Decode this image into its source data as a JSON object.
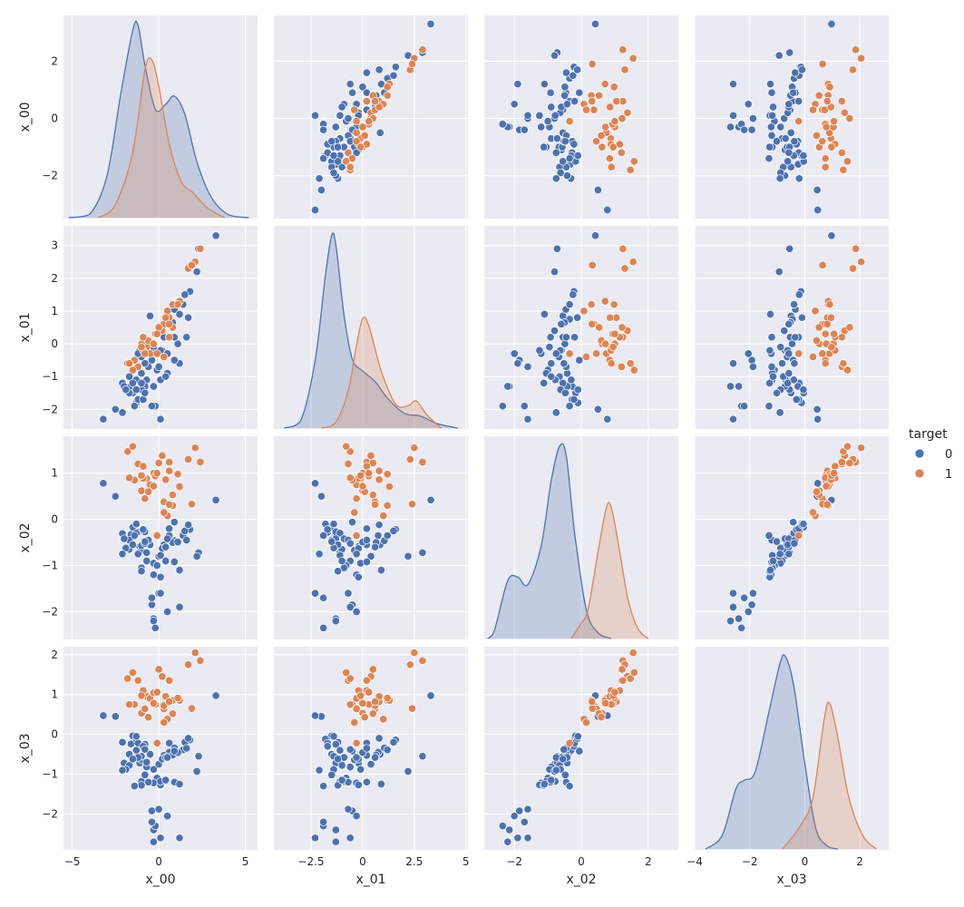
{
  "chart_data": {
    "type": "pairplot",
    "variables": [
      "x_00",
      "x_01",
      "x_02",
      "x_03"
    ],
    "hue": {
      "title": "target",
      "levels": [
        "0",
        "1"
      ],
      "colors": {
        "0": "#4c72b0",
        "1": "#dd8452"
      }
    },
    "axes": {
      "x_00": {
        "xlim": [
          -5.5,
          5.7
        ],
        "ylim": [
          -3.5,
          3.6
        ],
        "xticks": [
          -5,
          0,
          5
        ],
        "yticks": [
          -2,
          0,
          2
        ]
      },
      "x_01": {
        "xlim": [
          -4.3,
          5.1
        ],
        "ylim": [
          -2.6,
          3.6
        ],
        "xticks": [
          -2.5,
          0.0,
          2.5,
          5.0
        ],
        "yticks": [
          -2,
          -1,
          0,
          1,
          2,
          3
        ]
      },
      "x_02": {
        "xlim": [
          -2.9,
          2.9
        ],
        "ylim": [
          -2.6,
          1.8
        ],
        "xticks": [
          -2,
          0,
          2
        ],
        "yticks": [
          -2,
          -1,
          0,
          1
        ]
      },
      "x_03": {
        "xlim": [
          -4.0,
          3.05
        ],
        "ylim": [
          -2.9,
          2.2
        ],
        "xticks": [
          -4,
          -2,
          0,
          2
        ],
        "yticks": [
          -2,
          -1,
          0,
          1,
          2
        ]
      }
    },
    "points": {
      "0": [
        [
          -1.1,
          -0.2,
          -0.59,
          -0.72
        ],
        [
          -0.5,
          0.85,
          -0.55,
          -0.5
        ],
        [
          0.6,
          0.75,
          -0.35,
          -0.45
        ],
        [
          2.3,
          2.9,
          -0.72,
          -0.55
        ],
        [
          1.8,
          1.6,
          -0.22,
          -0.14
        ],
        [
          -1.6,
          -1.3,
          -0.33,
          -0.24
        ],
        [
          -2.1,
          -1.2,
          -0.31,
          -0.2
        ],
        [
          0.9,
          1.05,
          -0.46,
          -0.34
        ],
        [
          0.3,
          0.2,
          -0.55,
          -0.53
        ],
        [
          -1.0,
          -0.4,
          -0.67,
          -0.64
        ],
        [
          1.4,
          1.2,
          -0.35,
          -0.39
        ],
        [
          0.0,
          0.4,
          -0.8,
          -0.75
        ],
        [
          -1.5,
          -1.5,
          -0.17,
          -0.04
        ],
        [
          -1.3,
          -1.8,
          -0.1,
          -0.12
        ],
        [
          0.2,
          -0.2,
          -0.63,
          -0.62
        ],
        [
          3.3,
          3.3,
          0.42,
          0.97
        ],
        [
          -2.5,
          -2.0,
          0.5,
          0.45
        ],
        [
          -1.2,
          -1.7,
          -0.28,
          -0.22
        ],
        [
          -0.7,
          -0.6,
          -0.9,
          -0.82
        ],
        [
          0.8,
          0.65,
          -0.5,
          -0.52
        ],
        [
          -0.3,
          -0.1,
          -0.95,
          -0.88
        ],
        [
          1.1,
          0.0,
          -0.49,
          -0.46
        ],
        [
          -0.7,
          -1.1,
          -0.72,
          -0.7
        ],
        [
          -0.8,
          -1.3,
          -0.27,
          -0.25
        ],
        [
          -1.3,
          -1.1,
          -0.3,
          -0.4
        ],
        [
          -1.7,
          -1.5,
          -0.45,
          -0.5
        ],
        [
          -1.0,
          -1.4,
          -0.57,
          -0.55
        ],
        [
          -0.1,
          -0.8,
          -1.0,
          -1.1
        ],
        [
          0.4,
          0.6,
          -0.6,
          -0.58
        ],
        [
          1.5,
          1.5,
          -0.25,
          -0.2
        ],
        [
          2.2,
          2.2,
          -0.8,
          -0.93
        ],
        [
          -3.2,
          -2.3,
          0.78,
          0.47
        ],
        [
          -1.0,
          -0.9,
          -1.05,
          -1.18
        ],
        [
          -0.3,
          -0.3,
          -1.2,
          -1.22
        ],
        [
          0.1,
          -0.2,
          -1.25,
          -1.27
        ],
        [
          -0.9,
          -1.7,
          -0.22,
          -0.3
        ],
        [
          -2.0,
          -1.3,
          -0.42,
          -0.72
        ],
        [
          -0.4,
          -0.5,
          -1.85,
          -1.92
        ],
        [
          0.0,
          -0.7,
          -1.6,
          -1.88
        ],
        [
          0.5,
          -0.3,
          -2.0,
          -2.05
        ],
        [
          -0.3,
          -1.3,
          -2.15,
          -2.4
        ],
        [
          1.2,
          -0.6,
          -1.9,
          -2.6
        ],
        [
          -1.7,
          -1.0,
          -0.65,
          -0.78
        ],
        [
          -1.2,
          -0.3,
          -0.75,
          -0.58
        ],
        [
          0.5,
          -0.9,
          -0.42,
          -0.58
        ],
        [
          0.9,
          -0.5,
          -0.06,
          -0.42
        ],
        [
          -1.5,
          -1.2,
          -0.55,
          -0.62
        ],
        [
          -1.9,
          -1.4,
          -0.62,
          -0.88
        ],
        [
          0.6,
          0.2,
          -0.2,
          -0.22
        ],
        [
          1.6,
          0.2,
          -0.45,
          -0.35
        ],
        [
          0.1,
          -1.1,
          -0.78,
          -1.18
        ],
        [
          -0.6,
          -0.7,
          -0.45,
          -1.2
        ],
        [
          -1.0,
          -1.2,
          -1.12,
          -1.28
        ],
        [
          0.9,
          0.2,
          -0.92,
          -1.2
        ],
        [
          -0.8,
          -0.6,
          -0.52,
          -0.38
        ],
        [
          0.4,
          -1.0,
          -0.9,
          -1.15
        ],
        [
          -0.3,
          -1.3,
          -2.2,
          -2.7
        ],
        [
          -1.4,
          -1.9,
          -0.35,
          -1.3
        ],
        [
          -0.2,
          -1.9,
          -2.35,
          -2.3
        ],
        [
          -0.8,
          -1.5,
          -0.48,
          -1.02
        ],
        [
          1.2,
          0.9,
          -1.1,
          -1.25
        ],
        [
          1.7,
          0.8,
          -0.12,
          -0.1
        ],
        [
          0.1,
          -2.3,
          -1.6,
          -2.6
        ],
        [
          -2.1,
          -2.1,
          -0.75,
          -0.9
        ],
        [
          -1.3,
          -1.4,
          -0.1,
          -0.05
        ],
        [
          -0.4,
          -1.9,
          -1.7,
          -2.2
        ]
      ],
      "1": [
        [
          2.4,
          2.9,
          1.24,
          1.85
        ],
        [
          2.1,
          2.5,
          1.55,
          2.05
        ],
        [
          1.7,
          2.3,
          1.3,
          1.75
        ],
        [
          0.3,
          0.6,
          0.4,
          0.64
        ],
        [
          -0.7,
          -0.1,
          0.88,
          0.95
        ],
        [
          -0.5,
          -0.3,
          0.75,
          0.9
        ],
        [
          0.8,
          1.2,
          0.3,
          0.85
        ],
        [
          -1.2,
          -0.7,
          1.2,
          1.35
        ],
        [
          1.2,
          1.3,
          0.71,
          0.85
        ],
        [
          -0.3,
          0.0,
          1.0,
          1.04
        ],
        [
          -0.9,
          -0.2,
          0.89,
          1.1
        ],
        [
          0.2,
          0.4,
          1.38,
          1.45
        ],
        [
          -1.8,
          -0.6,
          1.47,
          1.4
        ],
        [
          -0.1,
          -0.3,
          -0.35,
          -0.22
        ],
        [
          0.6,
          0.2,
          1.24,
          1.35
        ],
        [
          -1.4,
          -0.5,
          0.85,
          0.75
        ],
        [
          -1.0,
          0.0,
          0.62,
          0.53
        ],
        [
          0.3,
          0.6,
          0.38,
          0.72
        ],
        [
          -0.8,
          -0.3,
          0.45,
          0.64
        ],
        [
          0.6,
          0.8,
          1.05,
          0.82
        ],
        [
          -0.2,
          0.3,
          0.94,
          0.75
        ],
        [
          0.5,
          1.0,
          0.08,
          0.38
        ],
        [
          1.1,
          1.2,
          0.98,
          0.91
        ],
        [
          -1.5,
          -0.8,
          1.58,
          1.55
        ],
        [
          0.8,
          0.5,
          0.53,
          0.52
        ],
        [
          -0.6,
          0.1,
          0.6,
          0.43
        ],
        [
          0.0,
          0.5,
          1.22,
          1.63
        ],
        [
          0.3,
          -0.4,
          0.15,
          0.3
        ],
        [
          -1.7,
          -0.6,
          0.9,
          0.75
        ],
        [
          -0.9,
          0.2,
          1.15,
          1.1
        ],
        [
          1.9,
          2.4,
          0.33,
          0.65
        ],
        [
          0.4,
          0.8,
          0.86,
          0.95
        ],
        [
          -0.3,
          0.0,
          0.72,
          0.78
        ],
        [
          0.6,
          0.6,
          0.32,
          0.82
        ],
        [
          -1.0,
          -0.1,
          0.95,
          0.97
        ],
        [
          -0.1,
          0.3,
          1.0,
          1.06
        ]
      ]
    },
    "kde": {
      "x_00": {
        "0": [
          [
            -5.2,
            0.0
          ],
          [
            -4.0,
            0.02
          ],
          [
            -3.0,
            0.25
          ],
          [
            -2.2,
            0.75
          ],
          [
            -1.5,
            1.14
          ],
          [
            -1.2,
            1.17
          ],
          [
            -0.8,
            0.93
          ],
          [
            -0.2,
            0.66
          ],
          [
            0.4,
            0.69
          ],
          [
            0.9,
            0.74
          ],
          [
            1.5,
            0.63
          ],
          [
            2.2,
            0.34
          ],
          [
            3.0,
            0.13
          ],
          [
            4.0,
            0.02
          ],
          [
            5.2,
            0.0
          ]
        ],
        "1": [
          [
            -3.5,
            0.0
          ],
          [
            -2.5,
            0.08
          ],
          [
            -1.5,
            0.4
          ],
          [
            -0.8,
            0.9
          ],
          [
            -0.4,
            0.96
          ],
          [
            0.0,
            0.8
          ],
          [
            0.6,
            0.45
          ],
          [
            1.3,
            0.22
          ],
          [
            2.0,
            0.15
          ],
          [
            2.8,
            0.06
          ],
          [
            3.8,
            0.0
          ]
        ]
      },
      "x_01": {
        "0": [
          [
            -3.8,
            0.0
          ],
          [
            -3.0,
            0.05
          ],
          [
            -2.3,
            0.45
          ],
          [
            -1.8,
            1.02
          ],
          [
            -1.5,
            1.28
          ],
          [
            -1.3,
            1.22
          ],
          [
            -0.9,
            0.75
          ],
          [
            -0.5,
            0.46
          ],
          [
            0.0,
            0.38
          ],
          [
            0.6,
            0.31
          ],
          [
            1.2,
            0.2
          ],
          [
            2.0,
            0.1
          ],
          [
            2.8,
            0.08
          ],
          [
            3.6,
            0.03
          ],
          [
            4.6,
            0.0
          ]
        ],
        "1": [
          [
            -2.0,
            0.0
          ],
          [
            -1.3,
            0.04
          ],
          [
            -0.7,
            0.25
          ],
          [
            -0.3,
            0.55
          ],
          [
            0.0,
            0.73
          ],
          [
            0.3,
            0.68
          ],
          [
            0.9,
            0.38
          ],
          [
            1.6,
            0.16
          ],
          [
            2.2,
            0.15
          ],
          [
            2.6,
            0.18
          ],
          [
            3.1,
            0.09
          ],
          [
            3.8,
            0.0
          ]
        ]
      },
      "x_02": {
        "0": [
          [
            -2.8,
            0.0
          ],
          [
            -2.6,
            0.04
          ],
          [
            -2.2,
            0.3
          ],
          [
            -1.9,
            0.32
          ],
          [
            -1.6,
            0.28
          ],
          [
            -1.2,
            0.48
          ],
          [
            -0.9,
            0.82
          ],
          [
            -0.65,
            1.0
          ],
          [
            -0.45,
            0.95
          ],
          [
            -0.2,
            0.55
          ],
          [
            0.15,
            0.15
          ],
          [
            0.5,
            0.03
          ],
          [
            0.9,
            0.0
          ]
        ],
        "1": [
          [
            -0.3,
            0.0
          ],
          [
            0.0,
            0.08
          ],
          [
            0.2,
            0.15
          ],
          [
            0.5,
            0.45
          ],
          [
            0.75,
            0.68
          ],
          [
            0.9,
            0.68
          ],
          [
            1.15,
            0.45
          ],
          [
            1.4,
            0.2
          ],
          [
            1.7,
            0.05
          ],
          [
            2.0,
            0.0
          ]
        ]
      },
      "x_03": {
        "0": [
          [
            -3.6,
            0.0
          ],
          [
            -3.0,
            0.08
          ],
          [
            -2.5,
            0.35
          ],
          [
            -2.2,
            0.4
          ],
          [
            -1.8,
            0.45
          ],
          [
            -1.3,
            0.8
          ],
          [
            -0.9,
            1.08
          ],
          [
            -0.7,
            1.12
          ],
          [
            -0.4,
            0.95
          ],
          [
            0.0,
            0.5
          ],
          [
            0.4,
            0.12
          ],
          [
            0.8,
            0.02
          ],
          [
            1.2,
            0.0
          ]
        ],
        "1": [
          [
            -0.8,
            0.0
          ],
          [
            -0.4,
            0.08
          ],
          [
            -0.1,
            0.15
          ],
          [
            0.3,
            0.3
          ],
          [
            0.7,
            0.75
          ],
          [
            0.9,
            0.85
          ],
          [
            1.2,
            0.65
          ],
          [
            1.6,
            0.3
          ],
          [
            2.1,
            0.08
          ],
          [
            2.6,
            0.0
          ]
        ]
      }
    }
  },
  "legend": {
    "title": "target",
    "items": [
      {
        "label": "0",
        "color": "#4c72b0"
      },
      {
        "label": "1",
        "color": "#dd8452"
      }
    ]
  },
  "axis_labels": {
    "x": [
      "x_00",
      "x_01",
      "x_02",
      "x_03"
    ],
    "y": [
      "x_00",
      "x_01",
      "x_02",
      "x_03"
    ]
  }
}
